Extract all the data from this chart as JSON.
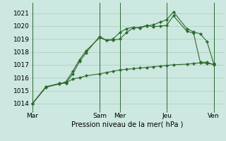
{
  "bg_color": "#cce8e0",
  "grid_color": "#aaccbb",
  "line_color": "#2d6a2d",
  "marker_color": "#2d6a2d",
  "xlabel": "Pression niveau de la mer( hPa )",
  "ylim": [
    1013.5,
    1021.8
  ],
  "yticks": [
    1014,
    1015,
    1016,
    1017,
    1018,
    1019,
    1020,
    1021
  ],
  "xtick_labels": [
    "Mar",
    "Sam",
    "Mer",
    "Jeu",
    "Ven"
  ],
  "xtick_positions": [
    0,
    10,
    13,
    20,
    27
  ],
  "vlines": [
    0,
    10,
    13,
    20,
    27
  ],
  "xlim": [
    -0.3,
    28.5
  ],
  "series1_x": [
    0,
    2,
    4,
    5,
    6,
    7,
    8,
    10,
    11,
    12,
    13,
    14,
    15,
    16,
    17,
    18,
    19,
    20,
    21,
    23,
    24,
    25,
    26,
    27
  ],
  "series1_y": [
    1014.0,
    1015.3,
    1015.5,
    1015.7,
    1016.5,
    1017.4,
    1018.1,
    1019.1,
    1018.9,
    1019.0,
    1019.5,
    1019.8,
    1019.9,
    1019.85,
    1020.0,
    1020.1,
    1020.3,
    1020.5,
    1021.1,
    1019.8,
    1019.55,
    1019.4,
    1018.8,
    1017.1
  ],
  "series2_x": [
    0,
    2,
    4,
    5,
    6,
    7,
    8,
    10,
    11,
    12,
    13,
    14,
    15,
    16,
    17,
    18,
    19,
    20,
    21,
    23,
    24,
    25,
    26,
    27
  ],
  "series2_y": [
    1014.0,
    1015.3,
    1015.55,
    1015.6,
    1016.3,
    1017.25,
    1017.95,
    1019.2,
    1018.9,
    1018.9,
    1019.0,
    1019.5,
    1019.85,
    1019.9,
    1020.05,
    1019.95,
    1020.0,
    1020.05,
    1020.8,
    1019.6,
    1019.45,
    1017.2,
    1017.2,
    1017.0
  ],
  "series3_x": [
    0,
    2,
    4,
    5,
    6,
    7,
    8,
    10,
    11,
    12,
    13,
    14,
    15,
    16,
    17,
    18,
    19,
    20,
    21,
    23,
    24,
    25,
    26,
    27
  ],
  "series3_y": [
    1014.0,
    1015.25,
    1015.55,
    1015.6,
    1015.9,
    1016.0,
    1016.15,
    1016.3,
    1016.4,
    1016.5,
    1016.6,
    1016.65,
    1016.7,
    1016.75,
    1016.8,
    1016.85,
    1016.9,
    1016.95,
    1017.0,
    1017.05,
    1017.1,
    1017.15,
    1017.1,
    1017.05
  ]
}
